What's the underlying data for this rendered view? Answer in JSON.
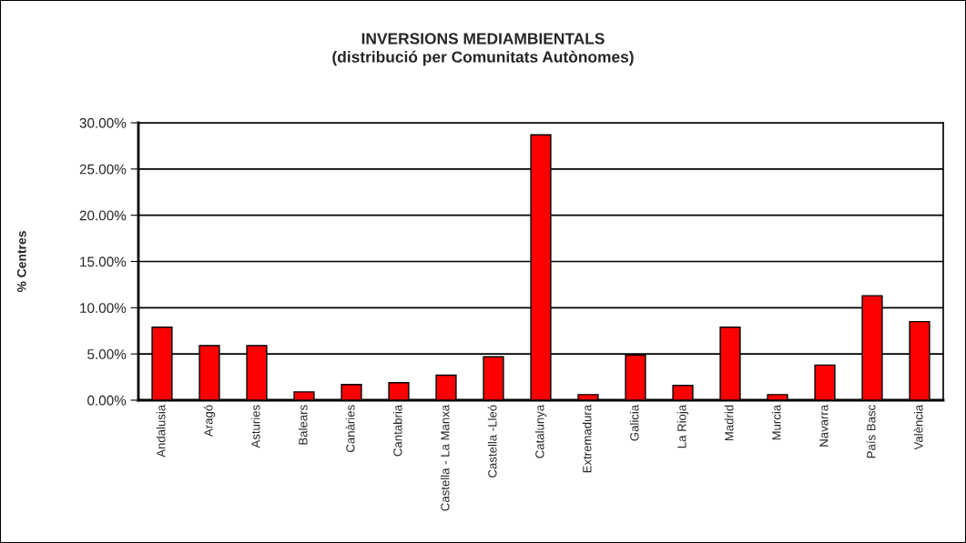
{
  "chart_data": {
    "type": "bar",
    "title": "INVERSIONS MEDIAMBIENTALS\n(distribució per Comunitats Autònomes)",
    "ylabel": "% Centres",
    "categories": [
      "Andalusia",
      "Aragó",
      "Asturies",
      "Balears",
      "Canàries",
      "Cantabria",
      "Castella - La Manxa",
      "Castella -Lleó",
      "Catalunya",
      "Extremadura",
      "Galicia",
      "La Rioja",
      "Madrid",
      "Murcia",
      "Navarra",
      "País Basc",
      "València"
    ],
    "values": [
      7.9,
      5.9,
      5.9,
      0.9,
      1.7,
      1.9,
      2.7,
      4.7,
      28.7,
      0.6,
      4.9,
      1.6,
      7.9,
      0.6,
      3.8,
      11.3,
      8.5
    ],
    "color": "#ff0000",
    "ylim": [
      0,
      30
    ],
    "yticks": [
      {
        "value": 0,
        "label": "0.00%"
      },
      {
        "value": 5,
        "label": "5.00%"
      },
      {
        "value": 10,
        "label": "10.00%"
      },
      {
        "value": 15,
        "label": "15.00%"
      },
      {
        "value": 20,
        "label": "20.00%"
      },
      {
        "value": 25,
        "label": "25.00%"
      },
      {
        "value": 30,
        "label": "30.00%"
      }
    ],
    "grid": "y"
  }
}
